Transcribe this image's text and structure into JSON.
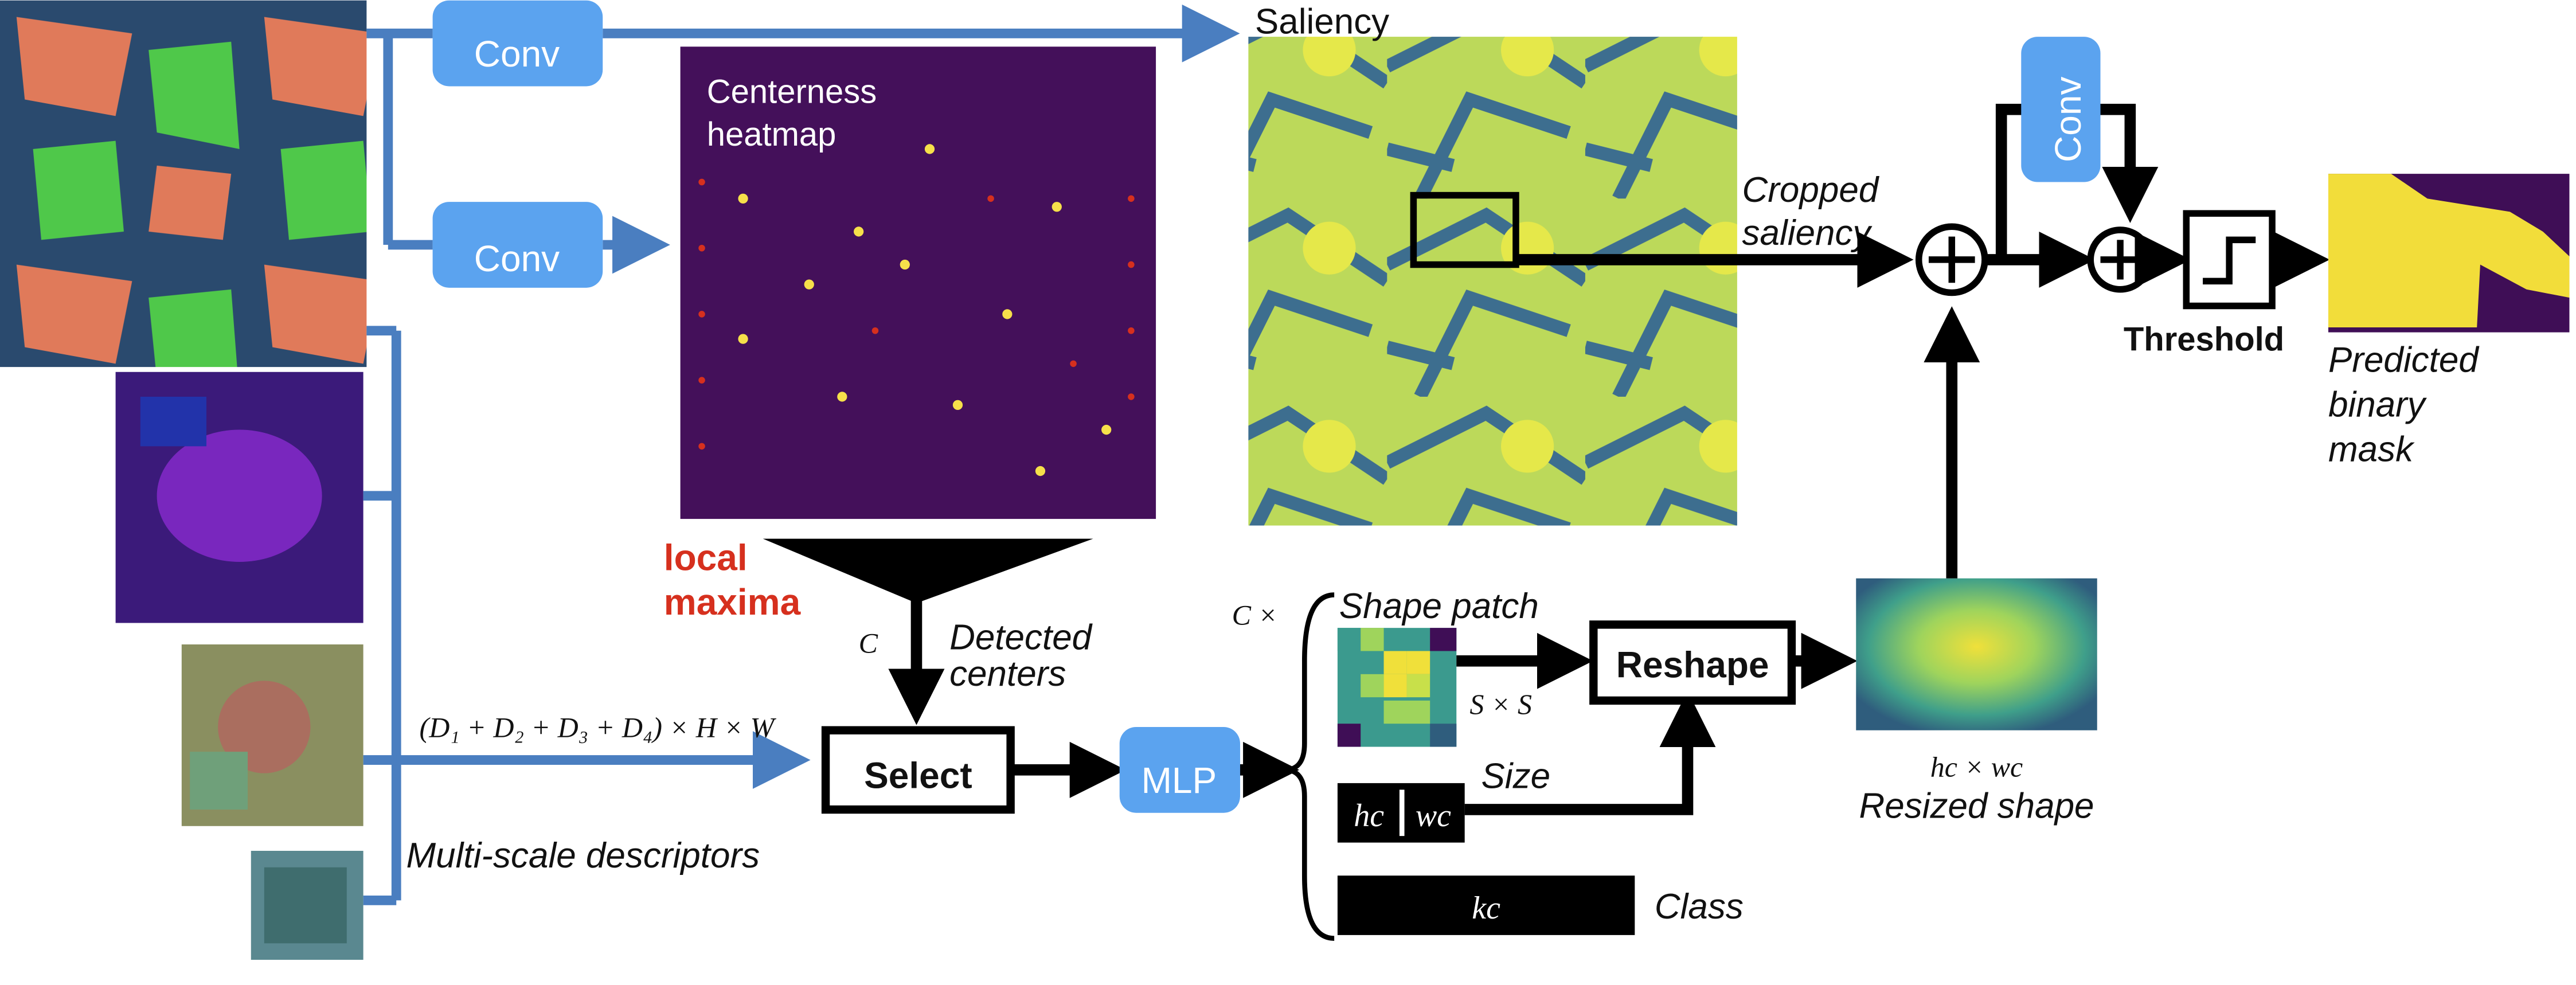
{
  "nodes": {
    "conv_top": "Conv",
    "conv_mid": "Conv",
    "conv_right": "Conv",
    "select": "Select",
    "mlp": "MLP",
    "reshape": "Reshape",
    "threshold": "Threshold"
  },
  "labels": {
    "saliency": "Saliency",
    "centerness_line1": "Centerness",
    "centerness_line2": "heatmap",
    "cropped_line1": "Cropped",
    "cropped_line2": "saliency",
    "local_line1": "local",
    "local_line2": "maxima",
    "c_symbol": "C",
    "detected_line1": "Detected",
    "detected_line2": "centers",
    "descriptor_dims": "(D₁ + D₂ + D₃ + D₄) × H × W",
    "multi_scale": "Multi-scale descriptors",
    "c_times": "C ×",
    "shape_patch": "Shape patch",
    "s_by_s": "S × S",
    "size": "Size",
    "h_c": "hc",
    "w_c": "wc",
    "k_c": "kc",
    "class": "Class",
    "hc_by_wc": "hc × wc",
    "resized_shape": "Resized shape",
    "predicted_line1": "Predicted",
    "predicted_line2": "binary",
    "predicted_line3": "mask"
  },
  "colors": {
    "blue_arrow": "#4a7ec0",
    "blue_button": "#5ba3ef",
    "heatmap_bg": "#44105a",
    "accent_red": "#d6301e",
    "mask_yellow": "#f2dd3a",
    "mask_purple": "#3f0e56"
  }
}
